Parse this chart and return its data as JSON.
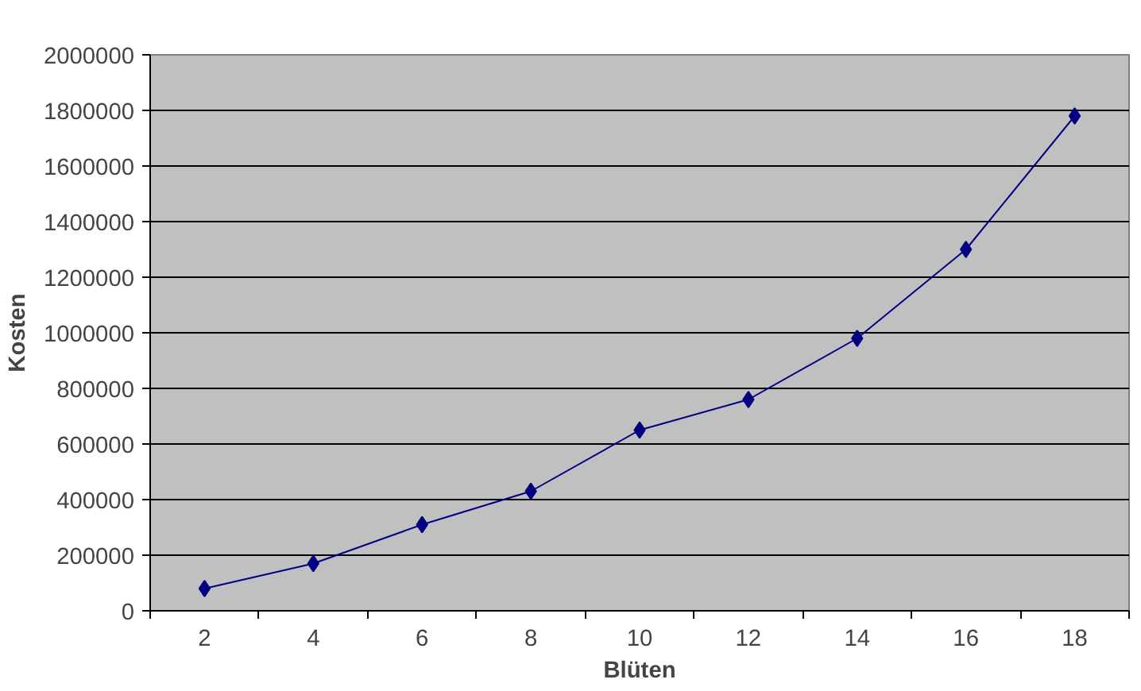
{
  "chart_data": {
    "type": "line",
    "xlabel": "Blüten",
    "ylabel": "Kosten",
    "categories": [
      "2",
      "4",
      "6",
      "8",
      "10",
      "12",
      "14",
      "16",
      "18"
    ],
    "series": [
      {
        "color": "#000080",
        "values": [
          80000,
          170000,
          310000,
          430000,
          650000,
          760000,
          980000,
          1300000,
          1780000
        ]
      }
    ],
    "ylim": [
      0,
      2000000
    ],
    "yticks": [
      0,
      200000,
      400000,
      600000,
      800000,
      1000000,
      1200000,
      1400000,
      1600000,
      1800000,
      2000000
    ],
    "grid": "y",
    "marker": "diamond",
    "line_style": "solid"
  }
}
